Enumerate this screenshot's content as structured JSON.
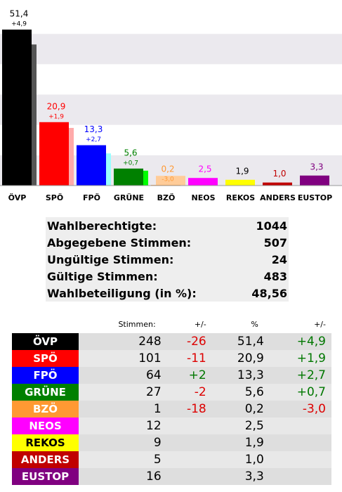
{
  "chart_data": {
    "type": "bar",
    "categories": [
      "ÖVP",
      "SPÖ",
      "FPÖ",
      "GRÜNE",
      "BZÖ",
      "NEOS",
      "REKOS",
      "ANDERS",
      "EUSTOP"
    ],
    "values": [
      51.4,
      20.9,
      13.3,
      5.6,
      0.2,
      2.5,
      1.9,
      1.0,
      3.3
    ],
    "value_labels": [
      "51,4",
      "20,9",
      "13,3",
      "5,6",
      "0,2",
      "2,5",
      "1,9",
      "1,0",
      "3,3"
    ],
    "changes": [
      4.9,
      1.9,
      2.7,
      0.7,
      -3.0,
      null,
      null,
      null,
      null
    ],
    "change_labels": [
      "+4,9",
      "+1,9",
      "+2,7",
      "+0,7",
      "-3,0",
      null,
      null,
      null,
      null
    ],
    "colors": [
      "#000000",
      "#ff0000",
      "#0000ff",
      "#008000",
      "#ff9933",
      "#ff00ff",
      "#ffff00",
      "#c00000",
      "#800080"
    ],
    "previous_colors": [
      "#555555",
      "#ffaaaa",
      "#99ffff",
      "#00ff00",
      "#ffcc99",
      null,
      null,
      null,
      null
    ],
    "label_colors": [
      "#000000",
      "#ff0000",
      "#0000ff",
      "#008000",
      "#ff9933",
      "#ff00ff",
      "#000000",
      "#c00000",
      "#800080"
    ],
    "ylim": [
      0,
      60
    ],
    "yticks": [
      0,
      10,
      20,
      30,
      40,
      50,
      60
    ],
    "grid": true
  },
  "stats": {
    "rows": [
      [
        "Wahlberechtigte:",
        "1044"
      ],
      [
        "Abgegebene Stimmen:",
        "507"
      ],
      [
        "Ungültige Stimmen:",
        "24"
      ],
      [
        "Gültige Stimmen:",
        "483"
      ],
      [
        "Wahlbeteiligung (in %):",
        "48,56"
      ]
    ]
  },
  "results": {
    "header": [
      "Stimmen:",
      "+/-",
      "%",
      "+/-"
    ],
    "rows": [
      [
        "ÖVP",
        "248",
        "-26",
        "51,4",
        "+4,9"
      ],
      [
        "SPÖ",
        "101",
        "-11",
        "20,9",
        "+1,9"
      ],
      [
        "FPÖ",
        "64",
        "+2",
        "13,3",
        "+2,7"
      ],
      [
        "GRÜNE",
        "27",
        "-2",
        "5,6",
        "+0,7"
      ],
      [
        "BZÖ",
        "1",
        "-18",
        "0,2",
        "-3,0"
      ],
      [
        "NEOS",
        "12",
        null,
        "2,5",
        null
      ],
      [
        "REKOS",
        "9",
        null,
        "1,9",
        null
      ],
      [
        "ANDERS",
        "5",
        null,
        "1,0",
        null
      ],
      [
        "EUSTOP",
        "16",
        null,
        "3,3",
        null
      ]
    ],
    "colors": [
      "#000000",
      "#ff0000",
      "#0000ff",
      "#008000",
      "#ff9933",
      "#ff00ff",
      "#ffff00",
      "#c00000",
      "#800080"
    ],
    "text_colors": [
      "#ffffff",
      "#ffffff",
      "#ffffff",
      "#ffffff",
      "#ffffff",
      "#ffffff",
      "#000000",
      "#ffffff",
      "#ffffff"
    ]
  }
}
